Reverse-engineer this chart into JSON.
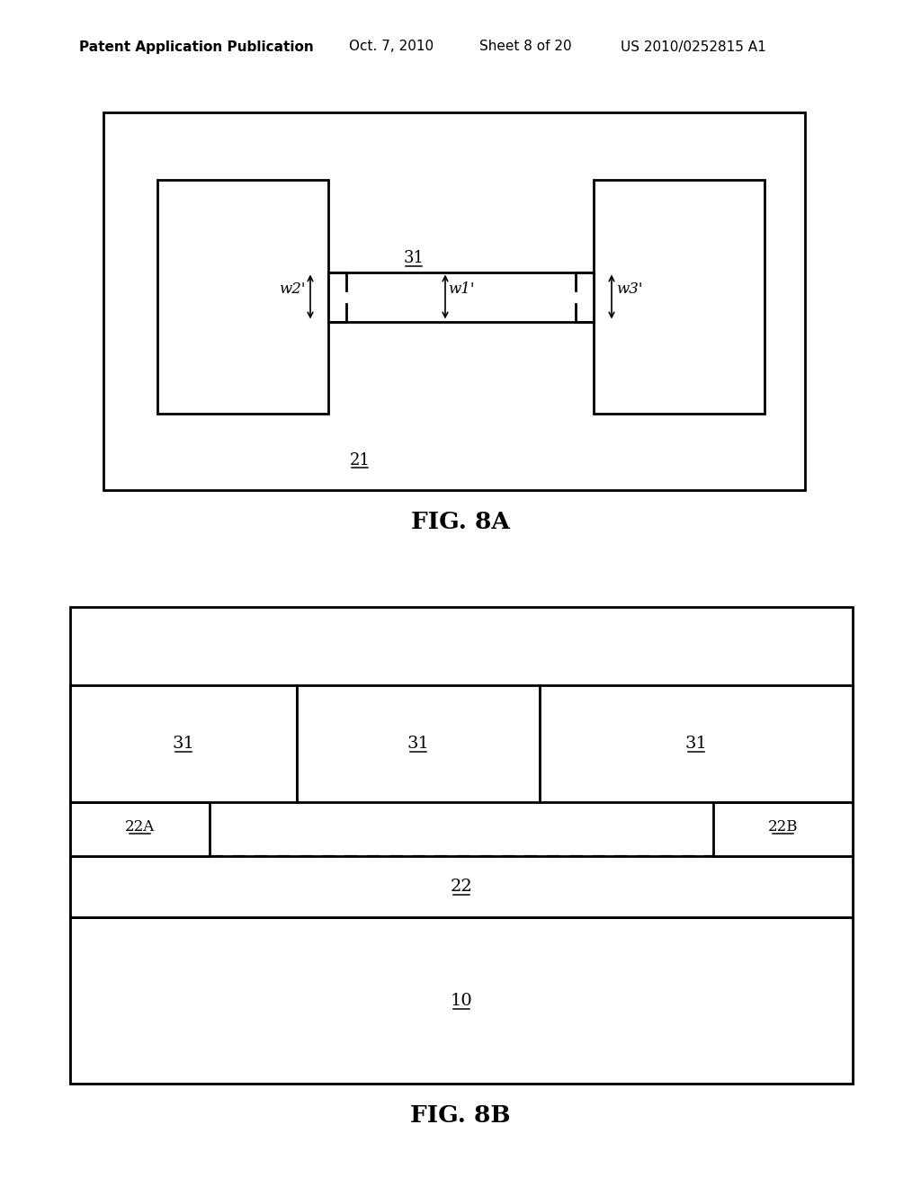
{
  "bg_color": "#ffffff",
  "header_text": "Patent Application Publication",
  "header_date": "Oct. 7, 2010",
  "header_sheet": "Sheet 8 of 20",
  "header_patent": "US 2010/0252815 A1",
  "fig8a_label": "FIG. 8A",
  "fig8b_label": "FIG. 8B",
  "label_21": "21",
  "label_31": "31",
  "label_22": "22",
  "label_22A": "22A",
  "label_22B": "22B",
  "label_10": "10",
  "label_w1": "w1'",
  "label_w2": "w2'",
  "label_w3": "w3'"
}
